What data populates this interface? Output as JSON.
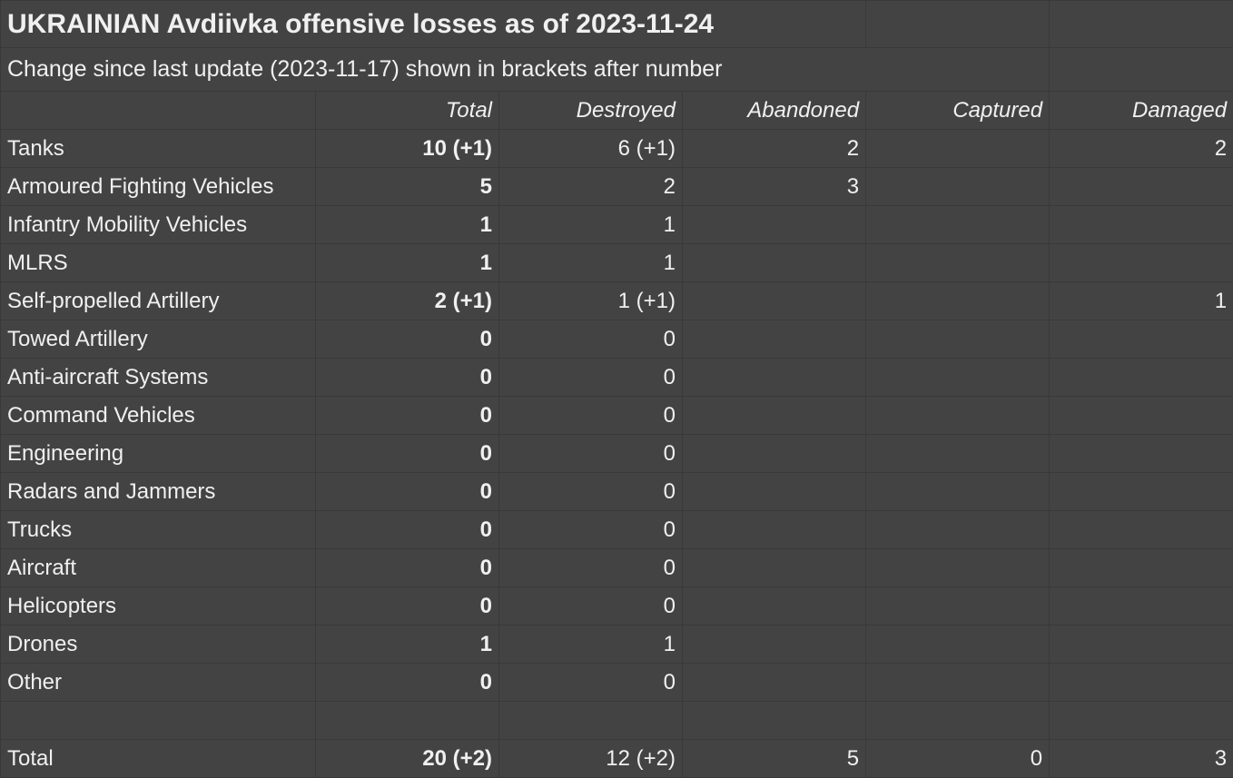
{
  "title": "UKRAINIAN Avdiivka offensive losses as of 2023-11-24",
  "subtitle": "Change since last update (2023-11-17) shown in brackets after number",
  "headers": [
    "Total",
    "Destroyed",
    "Abandoned",
    "Captured",
    "Damaged"
  ],
  "rows": [
    {
      "label": "Tanks",
      "total": "10 (+1)",
      "destroyed": "6 (+1)",
      "abandoned": "2",
      "captured": "",
      "damaged": "2"
    },
    {
      "label": "Armoured Fighting Vehicles",
      "total": "5",
      "destroyed": "2",
      "abandoned": "3",
      "captured": "",
      "damaged": ""
    },
    {
      "label": "Infantry Mobility Vehicles",
      "total": "1",
      "destroyed": "1",
      "abandoned": "",
      "captured": "",
      "damaged": ""
    },
    {
      "label": "MLRS",
      "total": "1",
      "destroyed": "1",
      "abandoned": "",
      "captured": "",
      "damaged": ""
    },
    {
      "label": "Self-propelled Artillery",
      "total": "2 (+1)",
      "destroyed": "1 (+1)",
      "abandoned": "",
      "captured": "",
      "damaged": "1"
    },
    {
      "label": "Towed Artillery",
      "total": "0",
      "destroyed": "0",
      "abandoned": "",
      "captured": "",
      "damaged": ""
    },
    {
      "label": "Anti-aircraft Systems",
      "total": "0",
      "destroyed": "0",
      "abandoned": "",
      "captured": "",
      "damaged": ""
    },
    {
      "label": "Command Vehicles",
      "total": "0",
      "destroyed": "0",
      "abandoned": "",
      "captured": "",
      "damaged": ""
    },
    {
      "label": "Engineering",
      "total": "0",
      "destroyed": "0",
      "abandoned": "",
      "captured": "",
      "damaged": ""
    },
    {
      "label": "Radars and Jammers",
      "total": "0",
      "destroyed": "0",
      "abandoned": "",
      "captured": "",
      "damaged": ""
    },
    {
      "label": "Trucks",
      "total": "0",
      "destroyed": "0",
      "abandoned": "",
      "captured": "",
      "damaged": ""
    },
    {
      "label": "Aircraft",
      "total": "0",
      "destroyed": "0",
      "abandoned": "",
      "captured": "",
      "damaged": ""
    },
    {
      "label": "Helicopters",
      "total": "0",
      "destroyed": "0",
      "abandoned": "",
      "captured": "",
      "damaged": ""
    },
    {
      "label": "Drones",
      "total": "1",
      "destroyed": "1",
      "abandoned": "",
      "captured": "",
      "damaged": ""
    },
    {
      "label": "Other",
      "total": "0",
      "destroyed": "0",
      "abandoned": "",
      "captured": "",
      "damaged": ""
    }
  ],
  "total_row": {
    "label": "Total",
    "total": "20 (+2)",
    "destroyed": "12 (+2)",
    "abandoned": "5",
    "captured": "0",
    "damaged": "3"
  }
}
